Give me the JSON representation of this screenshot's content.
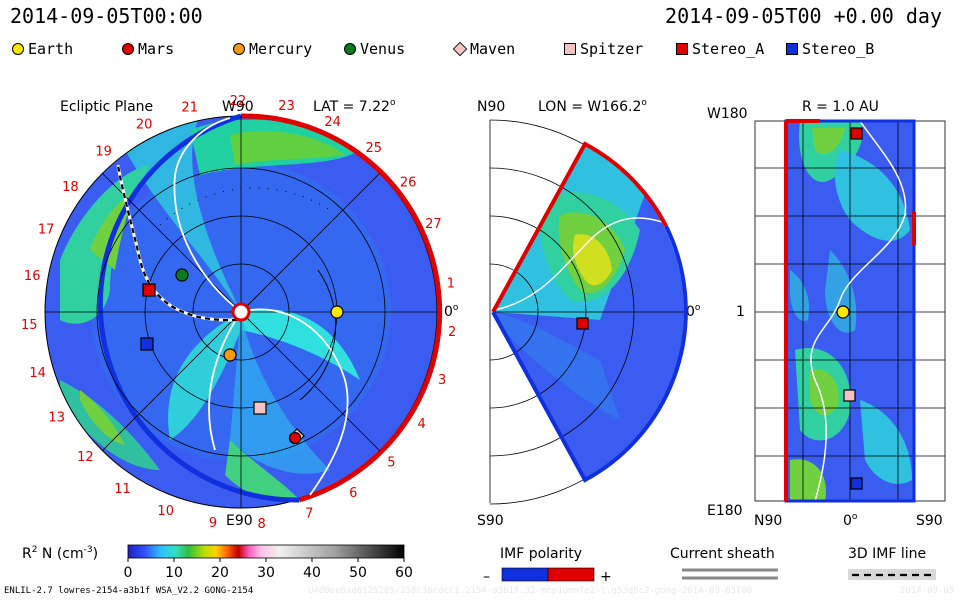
{
  "header": {
    "left": "2014-09-05T00:00",
    "right": "2014-09-05T00 +0.00 day"
  },
  "legend": [
    {
      "label": "Earth",
      "shape": "circle",
      "color": "#ffe600"
    },
    {
      "label": "Mars",
      "shape": "circle",
      "color": "#e00000"
    },
    {
      "label": "Mercury",
      "shape": "circle",
      "color": "#f39c12"
    },
    {
      "label": "Venus",
      "shape": "circle",
      "color": "#0a7a20"
    },
    {
      "label": "Maven",
      "shape": "diamond",
      "color": "#f4c2c2"
    },
    {
      "label": "Spitzer",
      "shape": "square",
      "color": "#f4c2c2"
    },
    {
      "label": "Stereo_A",
      "shape": "square",
      "color": "#e00000"
    },
    {
      "label": "Stereo_B",
      "shape": "square",
      "color": "#1030e0"
    }
  ],
  "chart_data": [
    {
      "type": "heatmap",
      "panel": "ecliptic",
      "title": "Ecliptic Plane",
      "lat_label": "LAT = 7.22",
      "lat_unit": "o",
      "top_label": "W90",
      "bottom_label": "E90",
      "right_label": "0",
      "right_unit": "o",
      "rim_ticks": [
        "1",
        "2",
        "3",
        "4",
        "5",
        "6",
        "7",
        "8",
        "9",
        "10",
        "11",
        "12",
        "13",
        "14",
        "15",
        "16",
        "17",
        "18",
        "19",
        "20",
        "21",
        "22",
        "23",
        "24",
        "25",
        "26",
        "27"
      ],
      "bodies": [
        "Earth",
        "Mars",
        "Mercury",
        "Venus",
        "Maven",
        "Spitzer",
        "Stereo_A",
        "Stereo_B"
      ]
    },
    {
      "type": "heatmap",
      "panel": "meridional",
      "lon_label": "LON = W166.2",
      "lon_unit": "o",
      "top_label": "N90",
      "bottom_label": "S90",
      "right_label": "0",
      "right_unit": "o",
      "bodies": [
        "Stereo_A"
      ]
    },
    {
      "type": "heatmap",
      "panel": "sphere",
      "r_label": "R = 1.0 AU",
      "top_left": "W180",
      "mid_left": "1",
      "bottom_left": "E180",
      "x_ticks": [
        "N90",
        "0",
        "S90"
      ],
      "x_tick_unit": "o",
      "bodies": [
        "Stereo_A",
        "Earth",
        "Spitzer",
        "Stereo_B"
      ]
    }
  ],
  "colorbar": {
    "label": "R",
    "label_sup": "2",
    "label_rest": " N (cm",
    "label_exp": "-3",
    "label_close": ")",
    "ticks": [
      "0",
      "10",
      "20",
      "30",
      "40",
      "50",
      "60"
    ],
    "range": [
      0,
      60
    ]
  },
  "imf": {
    "title": "IMF polarity",
    "minus": "–",
    "plus": "+"
  },
  "current_sheath": {
    "title": "Current sheath"
  },
  "imf3d": {
    "title": "3D IMF line"
  },
  "footer": {
    "left": "ENLIL-2.7 lowres-2154-a3b1f WSA_V2.2 GONG-2154",
    "mid": "U4d0ee6ad6125205/258c36cdcc1.2154-a3b1f.32-mcp1umnfe2-l.g53q6c2-gong-2014-09-05T00",
    "right": "2014-09-05"
  }
}
